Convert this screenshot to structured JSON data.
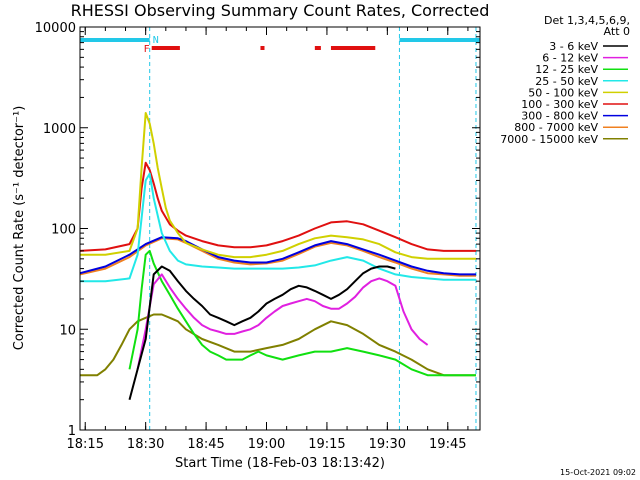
{
  "chart_data": {
    "type": "line",
    "title": "RHESSI Observing Summary Count Rates, Corrected",
    "xlabel": "Start Time (18-Feb-03 18:13:42)",
    "ylabel": "Corrected Count Rate (s⁻¹ detector⁻¹)",
    "y_scale": "log",
    "ylim": [
      1,
      10000
    ],
    "xlim": [
      "18:13:42",
      "19:53:00"
    ],
    "x_ticks": [
      "18:15",
      "18:30",
      "18:45",
      "19:00",
      "19:15",
      "19:30",
      "19:45"
    ],
    "y_ticks": [
      "1",
      "10",
      "100",
      "1000",
      "10000"
    ],
    "timestamp": "15-Oct-2021 09:02",
    "legend_header": [
      "Det 1,3,4,5,6,9,",
      "Att 0"
    ],
    "legend_position": "top-right",
    "flags": {
      "night_color": "#22c8e8",
      "flare_color": "#e01010",
      "night_intervals": [
        [
          "18:13:42",
          "18:31:00"
        ],
        [
          "19:33:00",
          "19:53:00"
        ]
      ],
      "flare_intervals": [
        [
          "18:31:30",
          "18:38:30"
        ],
        [
          "18:58:30",
          "18:59:30"
        ],
        [
          "19:12:00",
          "19:13:30"
        ],
        [
          "19:16:00",
          "19:27:00"
        ]
      ],
      "flare_label": "F",
      "night_label": "N",
      "night_boundaries": [
        "18:31:00",
        "19:33:00",
        "19:52:00"
      ]
    },
    "series": [
      {
        "name": "3 - 6 keV",
        "color": "#000000",
        "x": [
          "18:26",
          "18:28",
          "18:30",
          "18:32",
          "18:34",
          "18:36",
          "18:38",
          "18:40",
          "18:42",
          "18:44",
          "18:46",
          "18:48",
          "18:50",
          "18:52",
          "18:54",
          "18:56",
          "18:58",
          "19:00",
          "19:02",
          "19:04",
          "19:06",
          "19:08",
          "19:10",
          "19:12",
          "19:14",
          "19:16",
          "19:18",
          "19:20",
          "19:22",
          "19:24",
          "19:26",
          "19:28",
          "19:30",
          "19:32"
        ],
        "y": [
          2,
          4,
          8,
          35,
          42,
          38,
          30,
          24,
          20,
          17,
          14,
          13,
          12,
          11,
          12,
          13,
          15,
          18,
          20,
          22,
          25,
          27,
          26,
          24,
          22,
          20,
          22,
          25,
          30,
          36,
          40,
          42,
          42,
          40
        ]
      },
      {
        "name": "6 - 12 keV",
        "color": "#e020e0",
        "x": [
          "18:28",
          "18:30",
          "18:32",
          "18:34",
          "18:36",
          "18:38",
          "18:40",
          "18:42",
          "18:44",
          "18:46",
          "18:48",
          "18:50",
          "18:52",
          "18:54",
          "18:56",
          "18:58",
          "19:00",
          "19:02",
          "19:04",
          "19:06",
          "19:08",
          "19:10",
          "19:12",
          "19:14",
          "19:16",
          "19:18",
          "19:20",
          "19:22",
          "19:24",
          "19:26",
          "19:28",
          "19:30",
          "19:32",
          "19:34",
          "19:36",
          "19:38",
          "19:40"
        ],
        "y": [
          4,
          10,
          28,
          35,
          26,
          20,
          16,
          13,
          11,
          10,
          9.5,
          9,
          9,
          9.5,
          10,
          11,
          13,
          15,
          17,
          18,
          19,
          20,
          19,
          17,
          16,
          16,
          18,
          21,
          26,
          30,
          32,
          30,
          27,
          15,
          10,
          8,
          7
        ]
      },
      {
        "name": "12 - 25 keV",
        "color": "#10e010",
        "x": [
          "18:26",
          "18:28",
          "18:29",
          "18:30",
          "18:31",
          "18:32",
          "18:34",
          "18:36",
          "18:38",
          "18:40",
          "18:42",
          "18:44",
          "18:46",
          "18:48",
          "18:50",
          "18:52",
          "18:54",
          "18:56",
          "18:58",
          "19:00",
          "19:04",
          "19:08",
          "19:12",
          "19:16",
          "19:20",
          "19:24",
          "19:28",
          "19:32",
          "19:36",
          "19:40",
          "19:44",
          "19:48",
          "19:52"
        ],
        "y": [
          4,
          10,
          25,
          55,
          60,
          45,
          30,
          22,
          16,
          12,
          9,
          7,
          6,
          5.5,
          5,
          5,
          5,
          5.5,
          6,
          5.5,
          5,
          5.5,
          6,
          6,
          6.5,
          6,
          5.5,
          5,
          4,
          3.5,
          3.5,
          3.5,
          3.5
        ]
      },
      {
        "name": "25 - 50 keV",
        "color": "#22e8e8",
        "x": [
          "18:13:42",
          "18:20",
          "18:26",
          "18:28",
          "18:30",
          "18:31",
          "18:32",
          "18:34",
          "18:36",
          "18:38",
          "18:40",
          "18:44",
          "18:48",
          "18:52",
          "18:56",
          "19:00",
          "19:04",
          "19:08",
          "19:12",
          "19:16",
          "19:20",
          "19:24",
          "19:28",
          "19:32",
          "19:36",
          "19:40",
          "19:44",
          "19:48",
          "19:52"
        ],
        "y": [
          30,
          30,
          32,
          55,
          300,
          350,
          200,
          90,
          60,
          48,
          44,
          42,
          41,
          40,
          40,
          40,
          40,
          41,
          43,
          48,
          52,
          48,
          40,
          35,
          33,
          32,
          31,
          31,
          31
        ]
      },
      {
        "name": "50 - 100 keV",
        "color": "#d0d000",
        "x": [
          "18:13:42",
          "18:20",
          "18:26",
          "18:28",
          "18:29",
          "18:30",
          "18:31",
          "18:32",
          "18:33",
          "18:34",
          "18:35",
          "18:36",
          "18:38",
          "18:40",
          "18:44",
          "18:48",
          "18:52",
          "18:56",
          "19:00",
          "19:04",
          "19:08",
          "19:12",
          "19:16",
          "19:20",
          "19:24",
          "19:28",
          "19:32",
          "19:36",
          "19:40",
          "19:44",
          "19:48",
          "19:52"
        ],
        "y": [
          55,
          55,
          60,
          100,
          400,
          1400,
          1100,
          700,
          400,
          250,
          160,
          120,
          90,
          72,
          62,
          55,
          52,
          52,
          55,
          60,
          70,
          80,
          85,
          82,
          78,
          70,
          58,
          52,
          50,
          50,
          50,
          50
        ]
      },
      {
        "name": "100 - 300 keV",
        "color": "#e01010",
        "x": [
          "18:13:42",
          "18:20",
          "18:26",
          "18:28",
          "18:29",
          "18:30",
          "18:31",
          "18:32",
          "18:33",
          "18:34",
          "18:36",
          "18:38",
          "18:40",
          "18:44",
          "18:48",
          "18:52",
          "18:56",
          "19:00",
          "19:04",
          "19:08",
          "19:12",
          "19:16",
          "19:20",
          "19:24",
          "19:28",
          "19:32",
          "19:36",
          "19:40",
          "19:44",
          "19:48",
          "19:52"
        ],
        "y": [
          60,
          62,
          70,
          100,
          250,
          450,
          380,
          280,
          200,
          150,
          110,
          95,
          85,
          75,
          68,
          65,
          65,
          68,
          75,
          85,
          100,
          115,
          118,
          110,
          95,
          82,
          70,
          62,
          60,
          60,
          60
        ]
      },
      {
        "name": "300 - 800 keV",
        "color": "#0000e0",
        "x": [
          "18:13:42",
          "18:20",
          "18:26",
          "18:30",
          "18:34",
          "18:38",
          "18:40",
          "18:44",
          "18:48",
          "18:52",
          "18:56",
          "19:00",
          "19:04",
          "19:08",
          "19:12",
          "19:16",
          "19:20",
          "19:24",
          "19:28",
          "19:32",
          "19:36",
          "19:40",
          "19:44",
          "19:48",
          "19:52"
        ],
        "y": [
          36,
          42,
          55,
          70,
          82,
          80,
          75,
          62,
          52,
          48,
          46,
          46,
          50,
          58,
          68,
          75,
          70,
          62,
          55,
          48,
          42,
          38,
          36,
          35,
          35
        ]
      },
      {
        "name": "800 - 7000 keV",
        "color": "#f08020",
        "x": [
          "18:13:42",
          "18:20",
          "18:26",
          "18:30",
          "18:34",
          "18:38",
          "18:40",
          "18:44",
          "18:48",
          "18:52",
          "18:56",
          "19:00",
          "19:04",
          "19:08",
          "19:12",
          "19:16",
          "19:20",
          "19:24",
          "19:28",
          "19:32",
          "19:36",
          "19:40",
          "19:44",
          "19:48",
          "19:52"
        ],
        "y": [
          35,
          40,
          52,
          68,
          80,
          78,
          72,
          60,
          50,
          46,
          44,
          45,
          48,
          56,
          66,
          72,
          68,
          60,
          52,
          46,
          40,
          36,
          35,
          34,
          34
        ]
      },
      {
        "name": "7000 - 15000 keV",
        "color": "#808000",
        "x": [
          "18:13:42",
          "18:18",
          "18:20",
          "18:22",
          "18:24",
          "18:26",
          "18:28",
          "18:30",
          "18:32",
          "18:34",
          "18:36",
          "18:38",
          "18:40",
          "18:44",
          "18:48",
          "18:52",
          "18:56",
          "19:00",
          "19:04",
          "19:08",
          "19:12",
          "19:16",
          "19:20",
          "19:24",
          "19:28",
          "19:32",
          "19:36",
          "19:40",
          "19:44",
          "19:48",
          "19:52"
        ],
        "y": [
          3.5,
          3.5,
          4,
          5,
          7,
          10,
          12,
          13,
          14,
          14,
          13,
          12,
          10,
          8,
          7,
          6,
          6,
          6.5,
          7,
          8,
          10,
          12,
          11,
          9,
          7,
          6,
          5,
          4,
          3.5,
          3.5,
          3.5
        ]
      }
    ]
  }
}
